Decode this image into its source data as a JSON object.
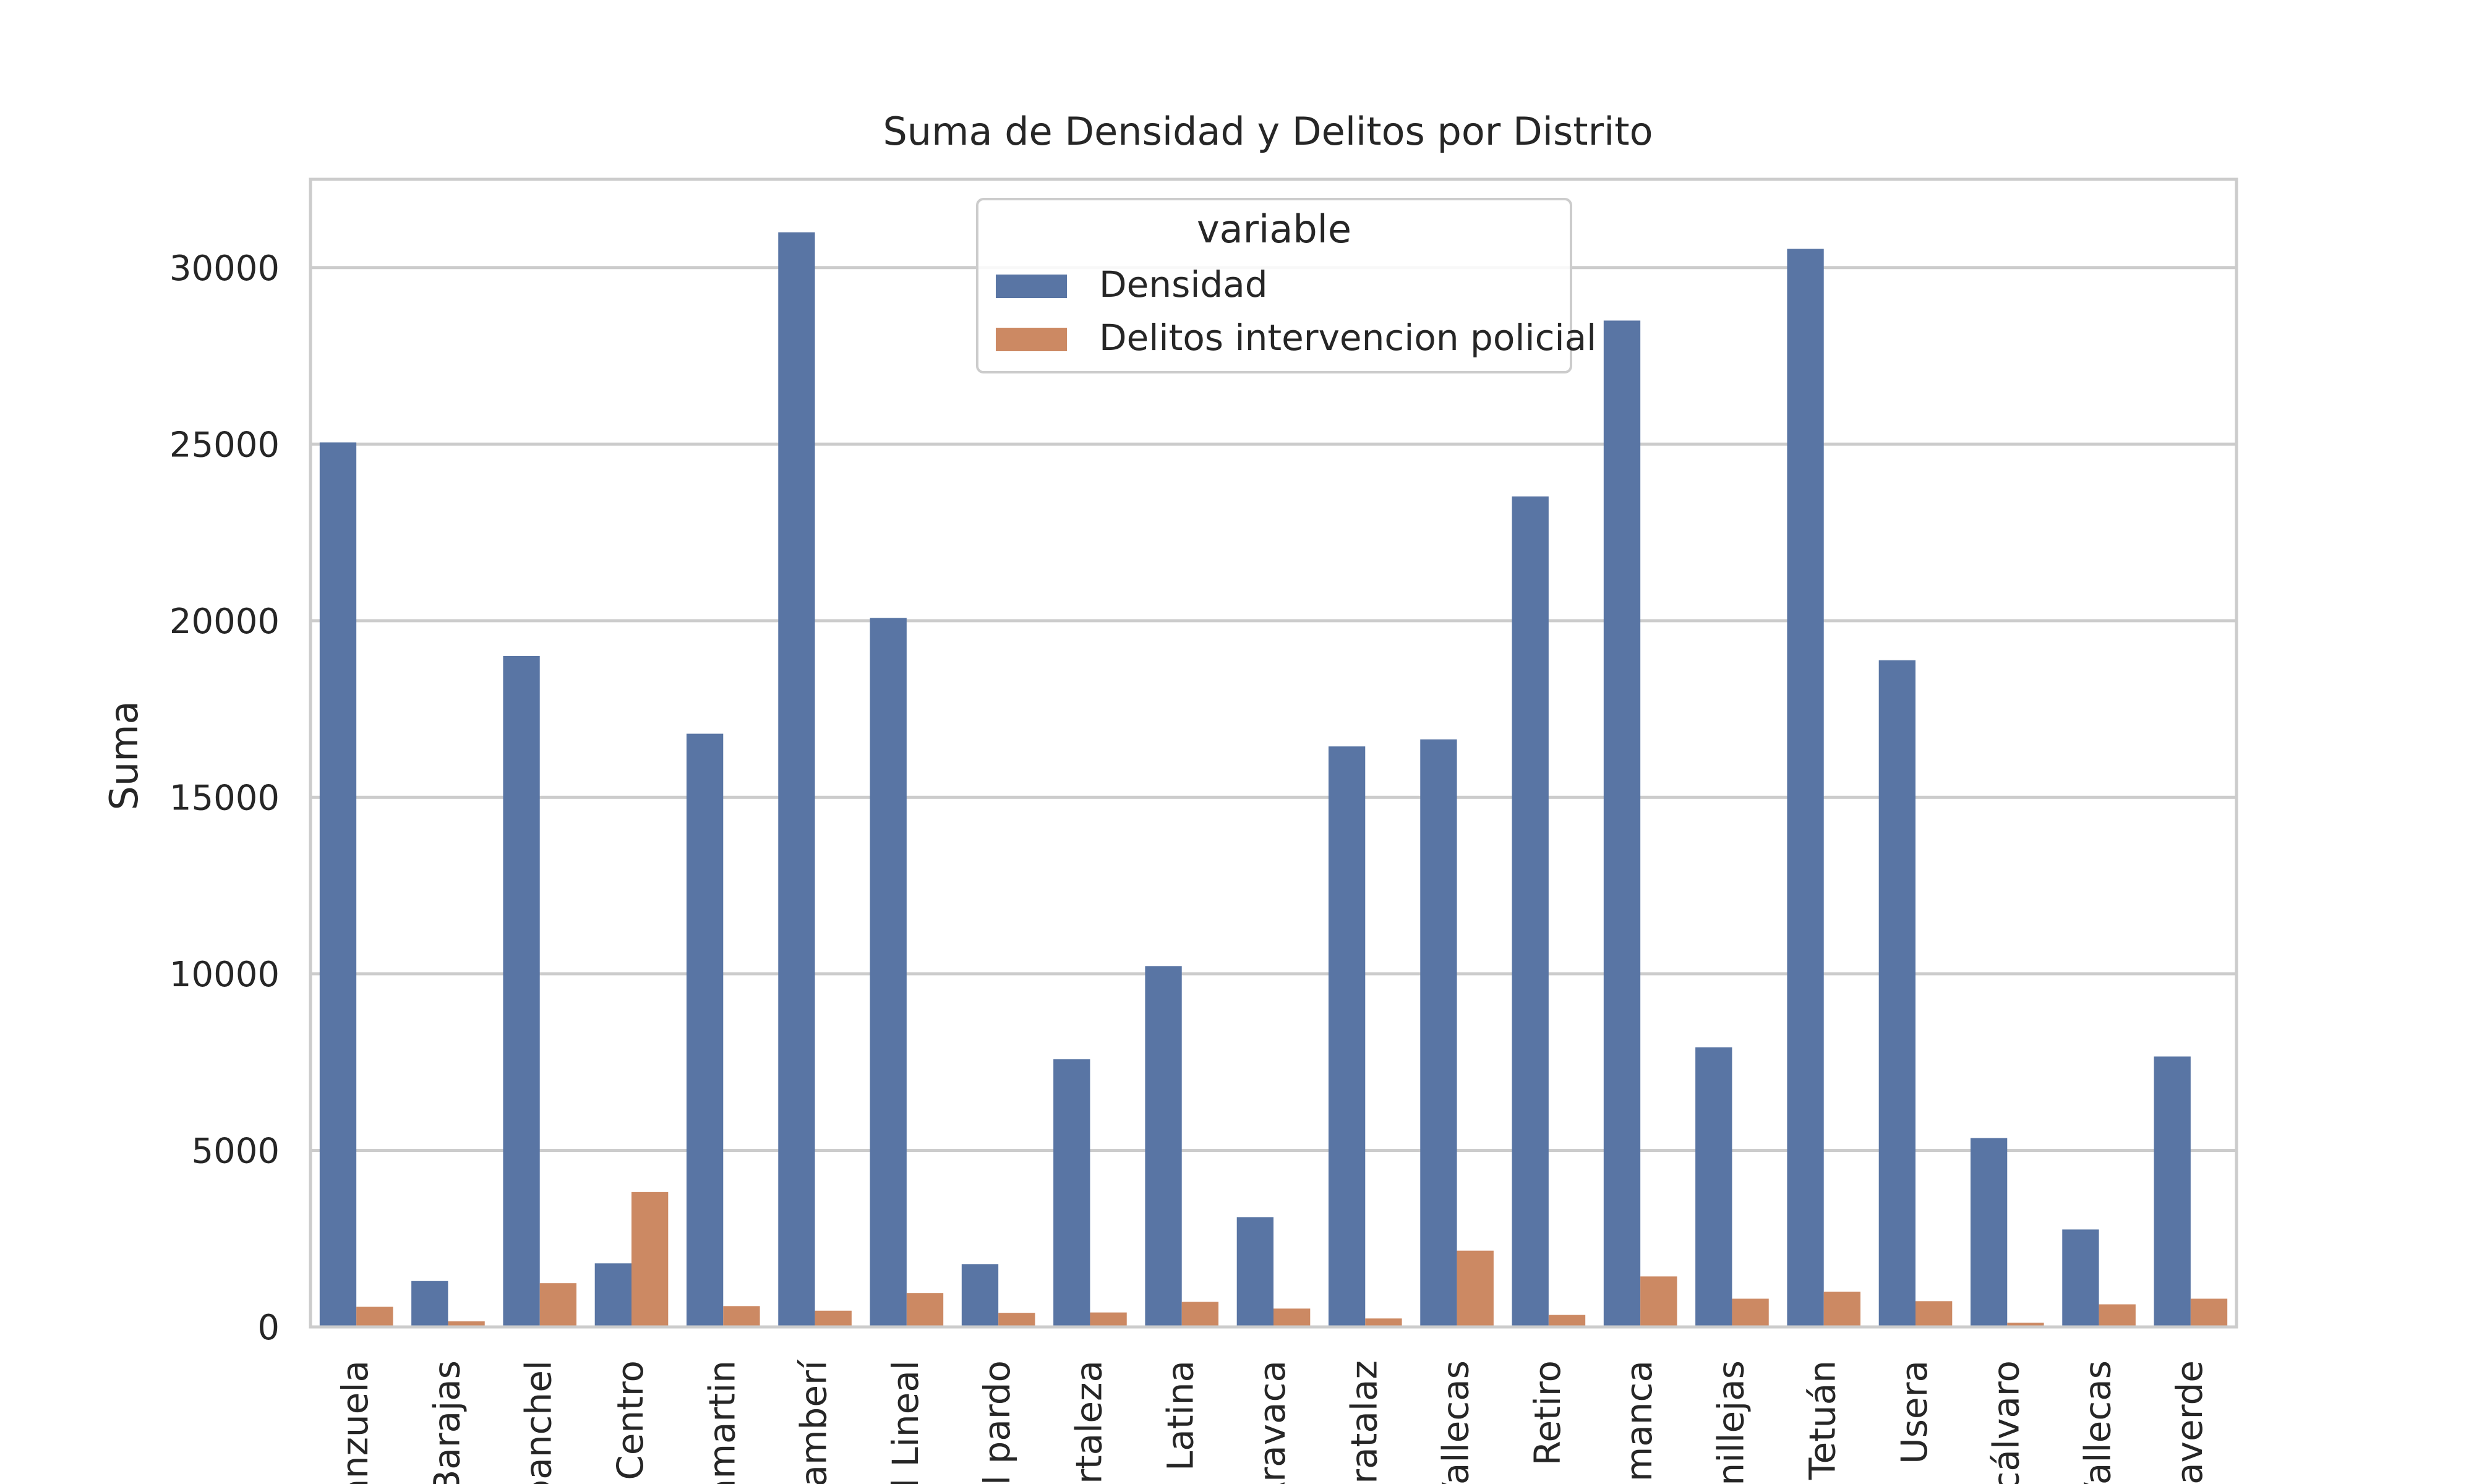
{
  "chart_data": {
    "type": "bar",
    "title": "Suma de Densidad y Delitos por Distrito",
    "xlabel": "",
    "ylabel": "Suma",
    "ylim": [
      0,
      32500
    ],
    "yticks": [
      0,
      5000,
      10000,
      15000,
      20000,
      25000,
      30000
    ],
    "ytick_labels": [
      "0",
      "5000",
      "10000",
      "15000",
      "20000",
      "25000",
      "30000"
    ],
    "grid": true,
    "legend": {
      "title": "variable",
      "placement": "top-center"
    },
    "categories": [
      "anzuela",
      "Barajas",
      "banchel",
      "Centro",
      "amartin",
      "namberí",
      "d Lineal",
      "El pardo",
      "ortaleza",
      "Latina",
      "Aravaca",
      "oratalaz",
      "Vallecas",
      "Retiro",
      "amanca",
      "anillejas",
      "Tetuán",
      "Usera",
      "icálvaro",
      "Vallecas",
      "llaverde"
    ],
    "series": [
      {
        "name": "Densidad",
        "color": "#5975a4",
        "values": [
          25050,
          1300,
          19000,
          1800,
          16800,
          31000,
          20080,
          1780,
          7580,
          10220,
          3110,
          16440,
          16640,
          23520,
          28500,
          7920,
          30530,
          18880,
          5350,
          2760,
          7660
        ]
      },
      {
        "name": "Delitos intervencion policial",
        "color": "#cc8963",
        "values": [
          570,
          160,
          1240,
          3820,
          590,
          460,
          960,
          400,
          410,
          710,
          520,
          240,
          2160,
          340,
          1430,
          800,
          1000,
          730,
          120,
          640,
          800
        ]
      }
    ]
  }
}
